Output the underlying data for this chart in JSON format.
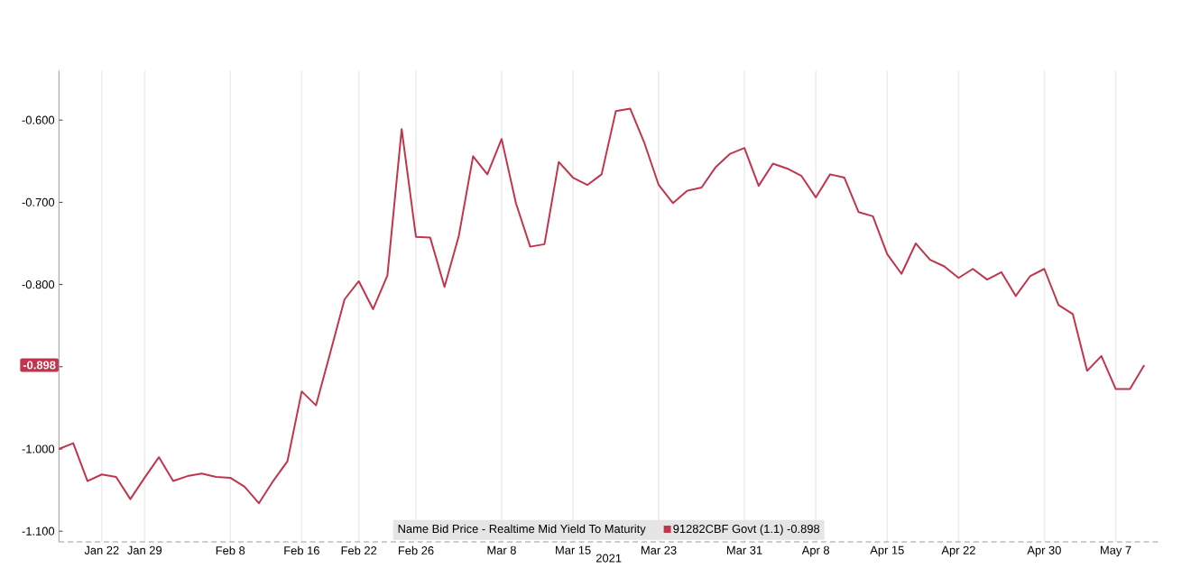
{
  "chart_data": {
    "type": "line",
    "xlabel": "2021",
    "legend_title": "Name   Bid Price - Realtime   Mid Yield To Maturity",
    "legend": "bottom",
    "grid": "x",
    "marker": "none",
    "line_style": "solid",
    "categories": [
      null,
      null,
      null,
      "Jan 22",
      null,
      null,
      "Jan 29",
      null,
      null,
      null,
      null,
      null,
      "Feb 8",
      null,
      null,
      null,
      null,
      "Feb 16",
      null,
      null,
      null,
      "Feb 22",
      null,
      null,
      null,
      "Feb 26",
      null,
      null,
      null,
      null,
      null,
      "Mar 8",
      null,
      null,
      null,
      null,
      "Mar 15",
      null,
      null,
      null,
      null,
      null,
      "Mar 23",
      null,
      null,
      null,
      null,
      null,
      "Mar 31",
      null,
      null,
      null,
      null,
      "Apr 8",
      null,
      null,
      null,
      null,
      "Apr 15",
      null,
      null,
      null,
      null,
      "Apr 22",
      null,
      null,
      null,
      null,
      null,
      "Apr 30",
      null,
      null,
      null,
      null,
      "May 7",
      null,
      null
    ],
    "series": [
      {
        "name": "91282CBF Govt  (1.1)  -0.898",
        "color": "#c0354c",
        "values": [
          -1.0,
          -0.993,
          -1.039,
          -1.031,
          -1.034,
          -1.061,
          -1.035,
          -1.01,
          -1.039,
          -1.033,
          -1.03,
          -1.034,
          -1.035,
          -1.046,
          -1.066,
          -1.039,
          -1.015,
          -0.93,
          -0.947,
          -0.883,
          -0.818,
          -0.796,
          -0.83,
          -0.789,
          -0.611,
          -0.742,
          -0.743,
          -0.803,
          -0.741,
          -0.644,
          -0.666,
          -0.623,
          -0.701,
          -0.754,
          -0.751,
          -0.651,
          -0.67,
          -0.679,
          -0.666,
          -0.589,
          -0.586,
          -0.628,
          -0.679,
          -0.701,
          -0.686,
          -0.682,
          -0.657,
          -0.641,
          -0.634,
          -0.68,
          -0.653,
          -0.659,
          -0.668,
          -0.694,
          -0.666,
          -0.67,
          -0.712,
          -0.717,
          -0.763,
          -0.787,
          -0.75,
          -0.77,
          -0.778,
          -0.792,
          -0.781,
          -0.794,
          -0.785,
          -0.814,
          -0.79,
          -0.781,
          -0.825,
          -0.836,
          -0.905,
          -0.887,
          -0.927,
          -0.927,
          -0.898
        ]
      }
    ],
    "ylim": [
      -1.113,
      -0.54
    ],
    "yticks": [
      {
        "value": -1.1,
        "label": "-1.100"
      },
      {
        "value": -1.0,
        "label": "-1.000"
      },
      {
        "value": -0.9,
        "label": null
      },
      {
        "value": -0.8,
        "label": "-0.800"
      },
      {
        "value": -0.7,
        "label": "-0.700"
      },
      {
        "value": -0.6,
        "label": "-0.600"
      }
    ],
    "annotations": [
      {
        "text": "-0.898",
        "y": -0.898
      }
    ]
  }
}
